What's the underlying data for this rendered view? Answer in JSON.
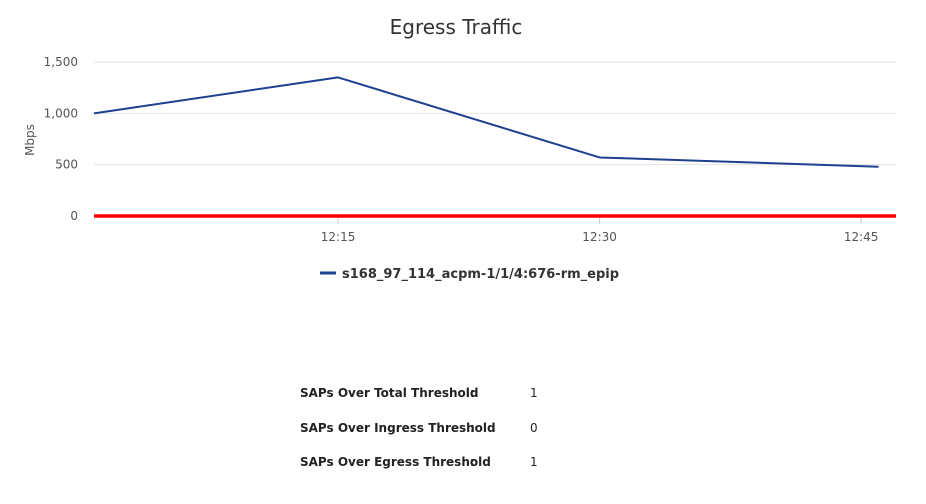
{
  "chart_data": {
    "type": "line",
    "title": "Egress Traffic",
    "ylabel": "Mbps",
    "xlabel": "",
    "ylim": [
      0,
      1500
    ],
    "yticks": [
      0,
      500,
      1000,
      1500
    ],
    "ytick_labels": [
      "0",
      "500",
      "1,000",
      "1,500"
    ],
    "xlim": [
      "12:01",
      "12:47"
    ],
    "xticks": [
      "12:15",
      "12:30",
      "12:45"
    ],
    "grid": true,
    "legend_position": "bottom",
    "series": [
      {
        "name": "s168_97_114_acpm-1/1/4:676-rm_epip",
        "color": "#1f3f8f",
        "x": [
          "12:01",
          "12:15",
          "12:30",
          "12:46"
        ],
        "values": [
          1000,
          1350,
          570,
          480
        ]
      }
    ],
    "threshold": {
      "value": 0,
      "color": "#ff0000"
    }
  },
  "stats": [
    {
      "label": "SAPs Over Total Threshold",
      "colon": ":",
      "value": "1"
    },
    {
      "label": "SAPs Over Ingress Threshold",
      "colon": ":",
      "value": "0"
    },
    {
      "label": "SAPs Over Egress Threshold",
      "colon": ":",
      "value": "1"
    }
  ]
}
